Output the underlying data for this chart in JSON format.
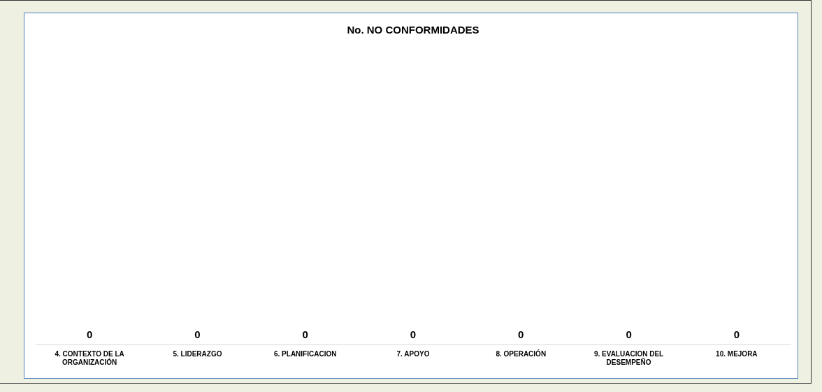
{
  "chart_data": {
    "type": "other",
    "title": "No. NO CONFORMIDADES",
    "categories": [
      "4. CONTEXTO DE LA ORGANIZACIÓN",
      "5. LIDERAZGO",
      "6. PLANIFICACION",
      "7. APOYO",
      "8. OPERACIÓN",
      "9. EVALUACION DEL DESEMPEÑO",
      "10. MEJORA"
    ],
    "values": [
      0,
      0,
      0,
      0,
      0,
      0,
      0
    ],
    "data_labels": true,
    "legend": false
  }
}
